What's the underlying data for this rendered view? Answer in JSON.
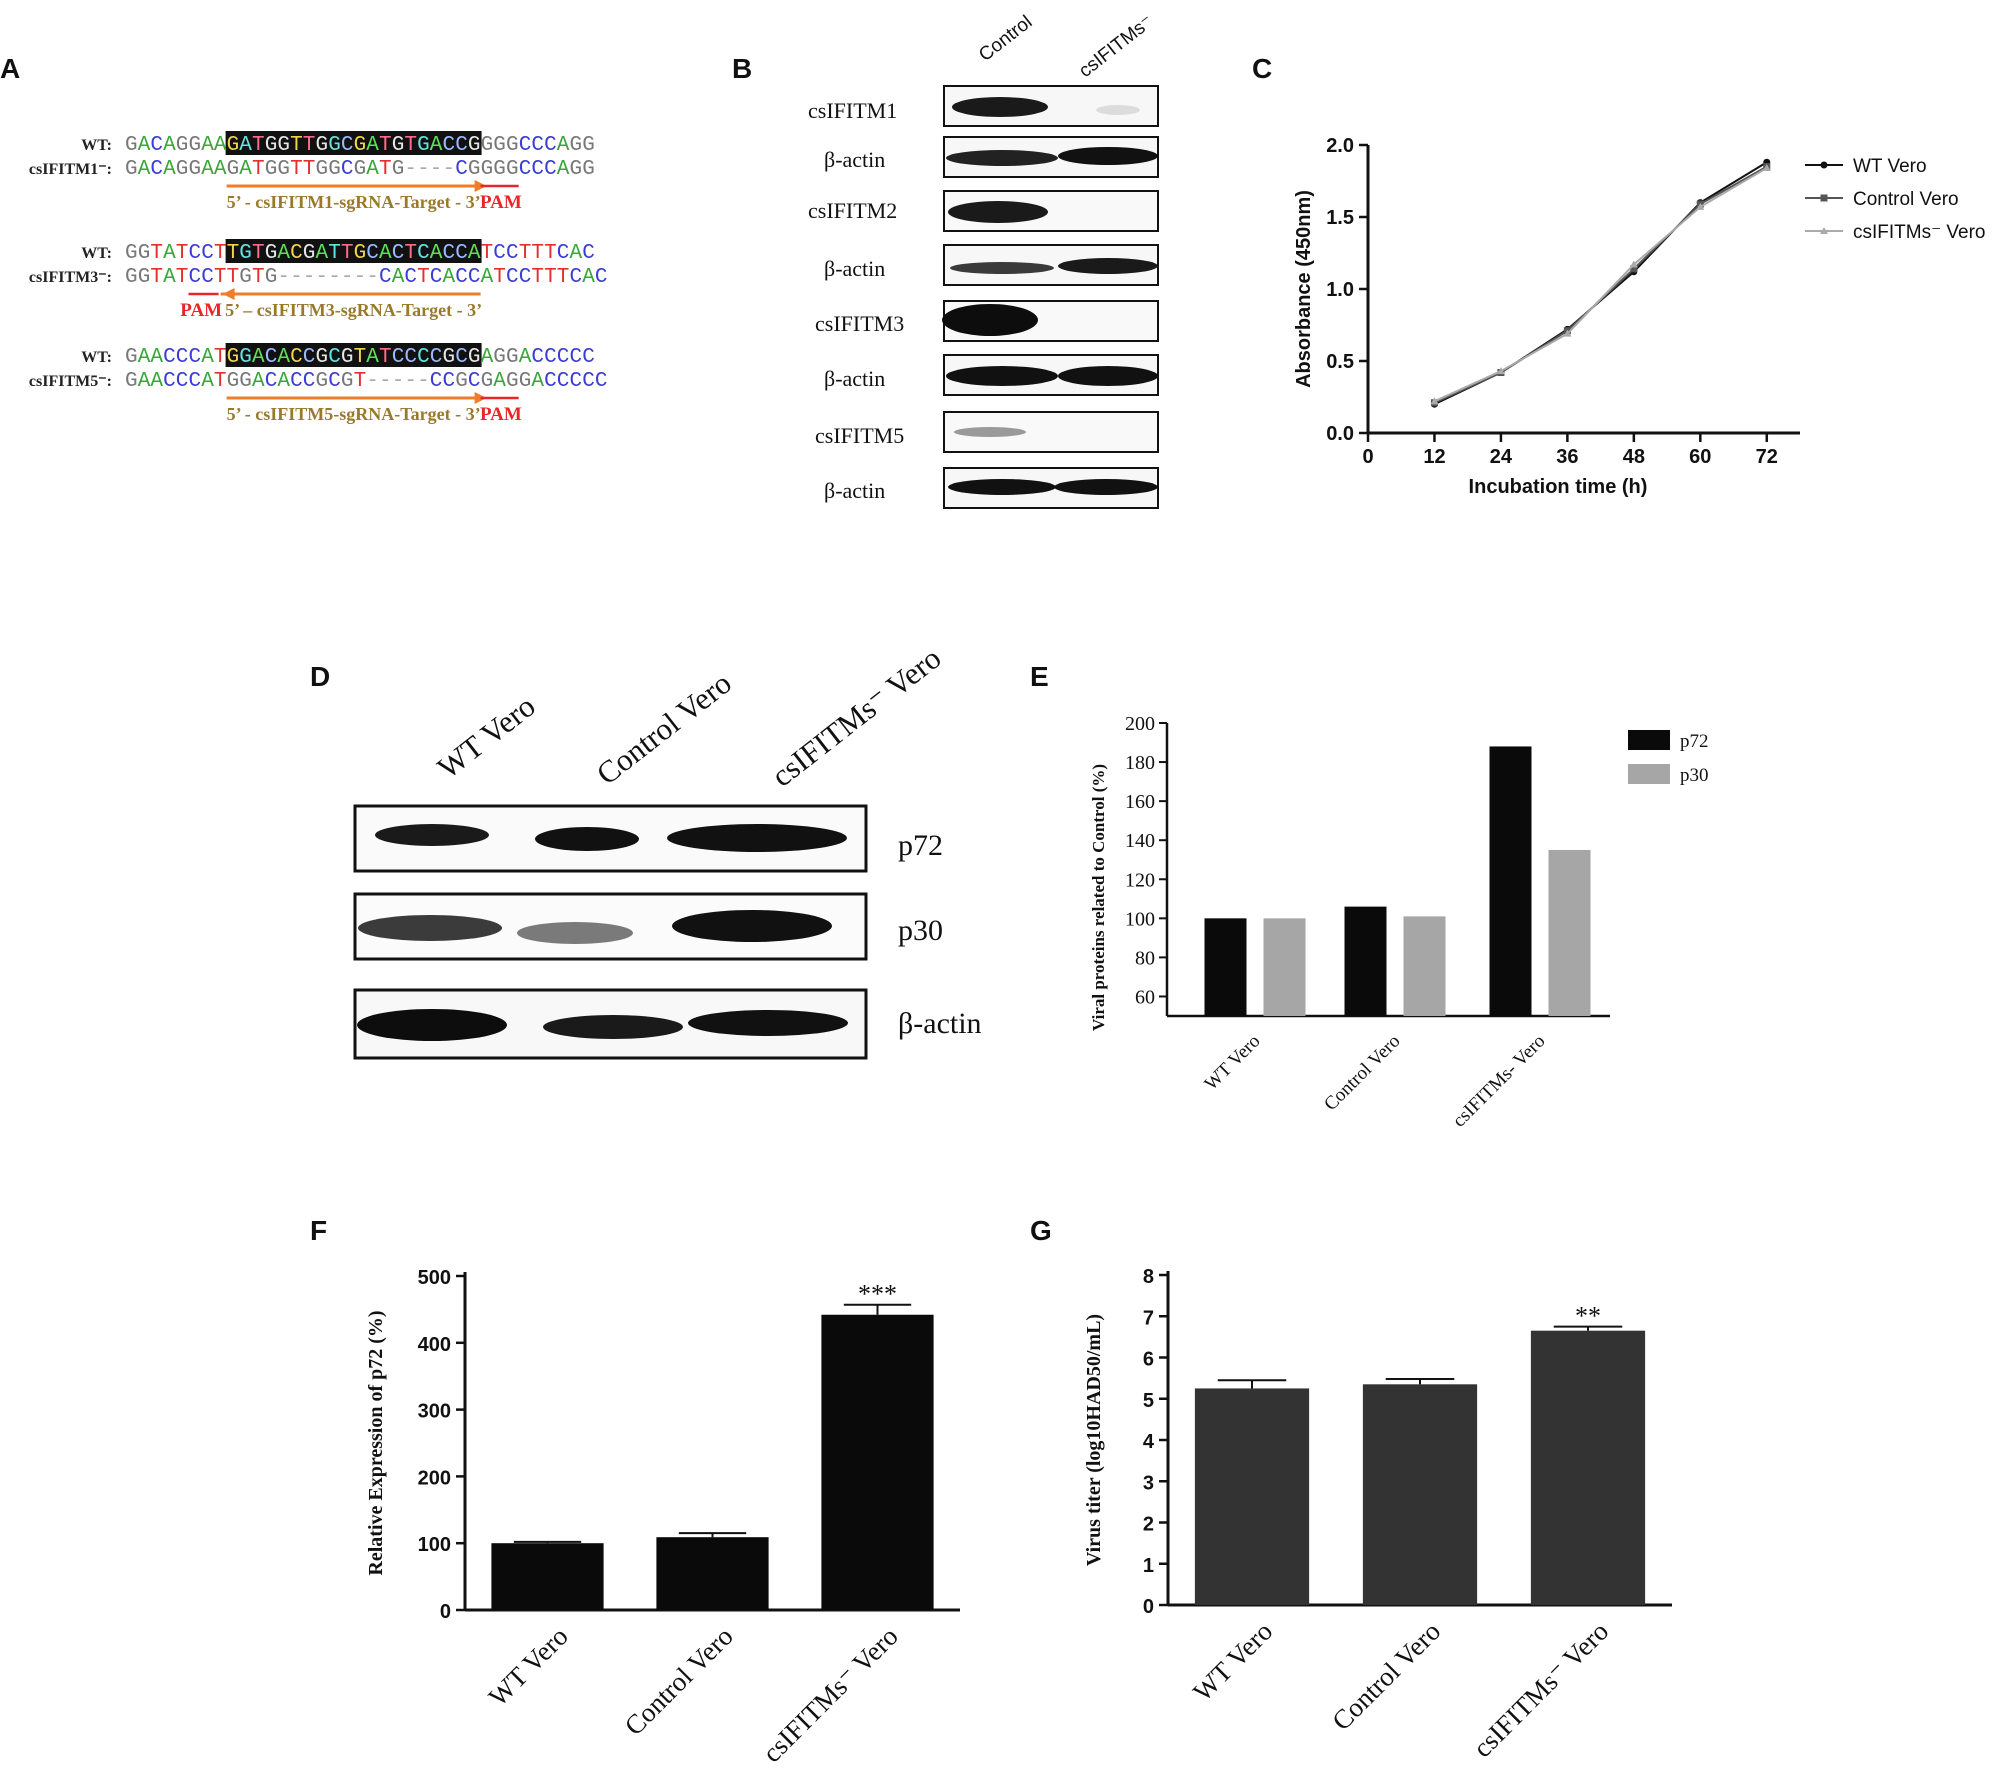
{
  "panels": {
    "A": "A",
    "B": "B",
    "C": "C",
    "D": "D",
    "E": "E",
    "F": "F",
    "G": "G"
  },
  "panel_a": {
    "groups": [
      {
        "wt_label": "WT:",
        "mut_label": "csIFITM1⁻:",
        "wt_seq": "GACAGGAAGATGGTTGGCGATGTGACCGGGGCCCAGG",
        "mut_seq": "GACAGGAAGATGGTTGGCGATG----CGGGGCCCAGG",
        "target_label": "5’ - csIFITM1-sgRNA-Target - 3’",
        "pam_label": "PAM",
        "direction": "right"
      },
      {
        "wt_label": "WT:",
        "mut_label": "csIFITM3⁻:",
        "wt_seq": "GGTATCCTTGTGACGATTGCACTCACCATCCTTTCAC",
        "mut_seq": "GGTATCCTTGTG--------CACTCACCATCCTTTCAC",
        "target_label": "5’ – csIFITM3-sgRNA-Target - 3’",
        "pam_label": "PAM",
        "direction": "left"
      },
      {
        "wt_label": "WT:",
        "mut_label": "csIFITM5⁻:",
        "wt_seq": "GAACCCATGGACACCGCGTATCCCCGCGAGGACCCCC",
        "mut_seq": "GAACCCATGGACACCGCGT-----CCGCGAGGACCCCC",
        "target_label": "5’ - csIFITM5-sgRNA-Target - 3’",
        "pam_label": "PAM",
        "direction": "right"
      }
    ],
    "base_colors": {
      "A": "#3aa63a",
      "C": "#3b3bd6",
      "G": "#777777",
      "T": "#e23030"
    }
  },
  "panel_b": {
    "columns": [
      "Control",
      "csIFITMs⁻"
    ],
    "rows": [
      "csIFITM1",
      "β-actin",
      "csIFITM2",
      "β-actin",
      "csIFITM3",
      "β-actin",
      "csIFITM5",
      "β-actin"
    ]
  },
  "panel_d": {
    "columns": [
      "WT Vero",
      "Control Vero",
      "csIFITMs⁻ Vero"
    ],
    "rows": [
      "p72",
      "p30",
      "β-actin"
    ]
  },
  "chart_data": [
    {
      "panel": "C",
      "type": "line",
      "xlabel": "Incubation time (h)",
      "ylabel": "Absorbance  (450nm)",
      "x": [
        12,
        24,
        36,
        48,
        60,
        72
      ],
      "xticks": [
        "0",
        "12",
        "24",
        "36",
        "48",
        "60",
        "72"
      ],
      "yticks": [
        "0.0",
        "0.5",
        "1.0",
        "1.5",
        "2.0"
      ],
      "xlim": [
        0,
        78
      ],
      "ylim": [
        0,
        2.0
      ],
      "series": [
        {
          "name": "WT Vero",
          "values": [
            0.2,
            0.42,
            0.72,
            1.12,
            1.6,
            1.88
          ],
          "color": "#111111"
        },
        {
          "name": "Control Vero",
          "values": [
            0.21,
            0.42,
            0.71,
            1.14,
            1.59,
            1.85
          ],
          "color": "#555555"
        },
        {
          "name": "csIFITMs⁻ Vero",
          "values": [
            0.22,
            0.43,
            0.69,
            1.17,
            1.57,
            1.84
          ],
          "color": "#aaaaaa"
        }
      ],
      "legend": "top-right"
    },
    {
      "panel": "E",
      "type": "bar",
      "ylabel": "Viral proteins related to Control (%)",
      "categories": [
        "WT Vero",
        "Control Vero",
        "csIFITMs- Vero"
      ],
      "yticks": [
        "60",
        "80",
        "100",
        "120",
        "140",
        "160",
        "180",
        "200"
      ],
      "ylim": [
        50,
        200
      ],
      "series": [
        {
          "name": "p72",
          "values": [
            100,
            106,
            188
          ],
          "color": "#0a0a0a"
        },
        {
          "name": "p30",
          "values": [
            100,
            101,
            135
          ],
          "color": "#a6a6a6"
        }
      ],
      "legend": "top-right"
    },
    {
      "panel": "F",
      "type": "bar",
      "ylabel": "Relative Expression of p72 (%)",
      "categories": [
        "WT Vero",
        "Control Vero",
        "csIFITMs⁻ Vero"
      ],
      "values": [
        100,
        109,
        442
      ],
      "errors": [
        2,
        6,
        15
      ],
      "annotations": [
        "",
        "",
        "***"
      ],
      "yticks": [
        "0",
        "100",
        "200",
        "300",
        "400",
        "500"
      ],
      "ylim": [
        0,
        500
      ],
      "color": "#0a0a0a"
    },
    {
      "panel": "G",
      "type": "bar",
      "ylabel": "Virus titer (log10HAD50/mL)",
      "categories": [
        "WT Vero",
        "Control Vero",
        "csIFITMs⁻ Vero"
      ],
      "values": [
        5.25,
        5.35,
        6.65
      ],
      "errors": [
        0.2,
        0.13,
        0.1
      ],
      "annotations": [
        "",
        "",
        "**"
      ],
      "yticks": [
        "0",
        "1",
        "2",
        "3",
        "4",
        "5",
        "6",
        "7",
        "8"
      ],
      "ylim": [
        0,
        8
      ],
      "color": "#333333"
    }
  ]
}
